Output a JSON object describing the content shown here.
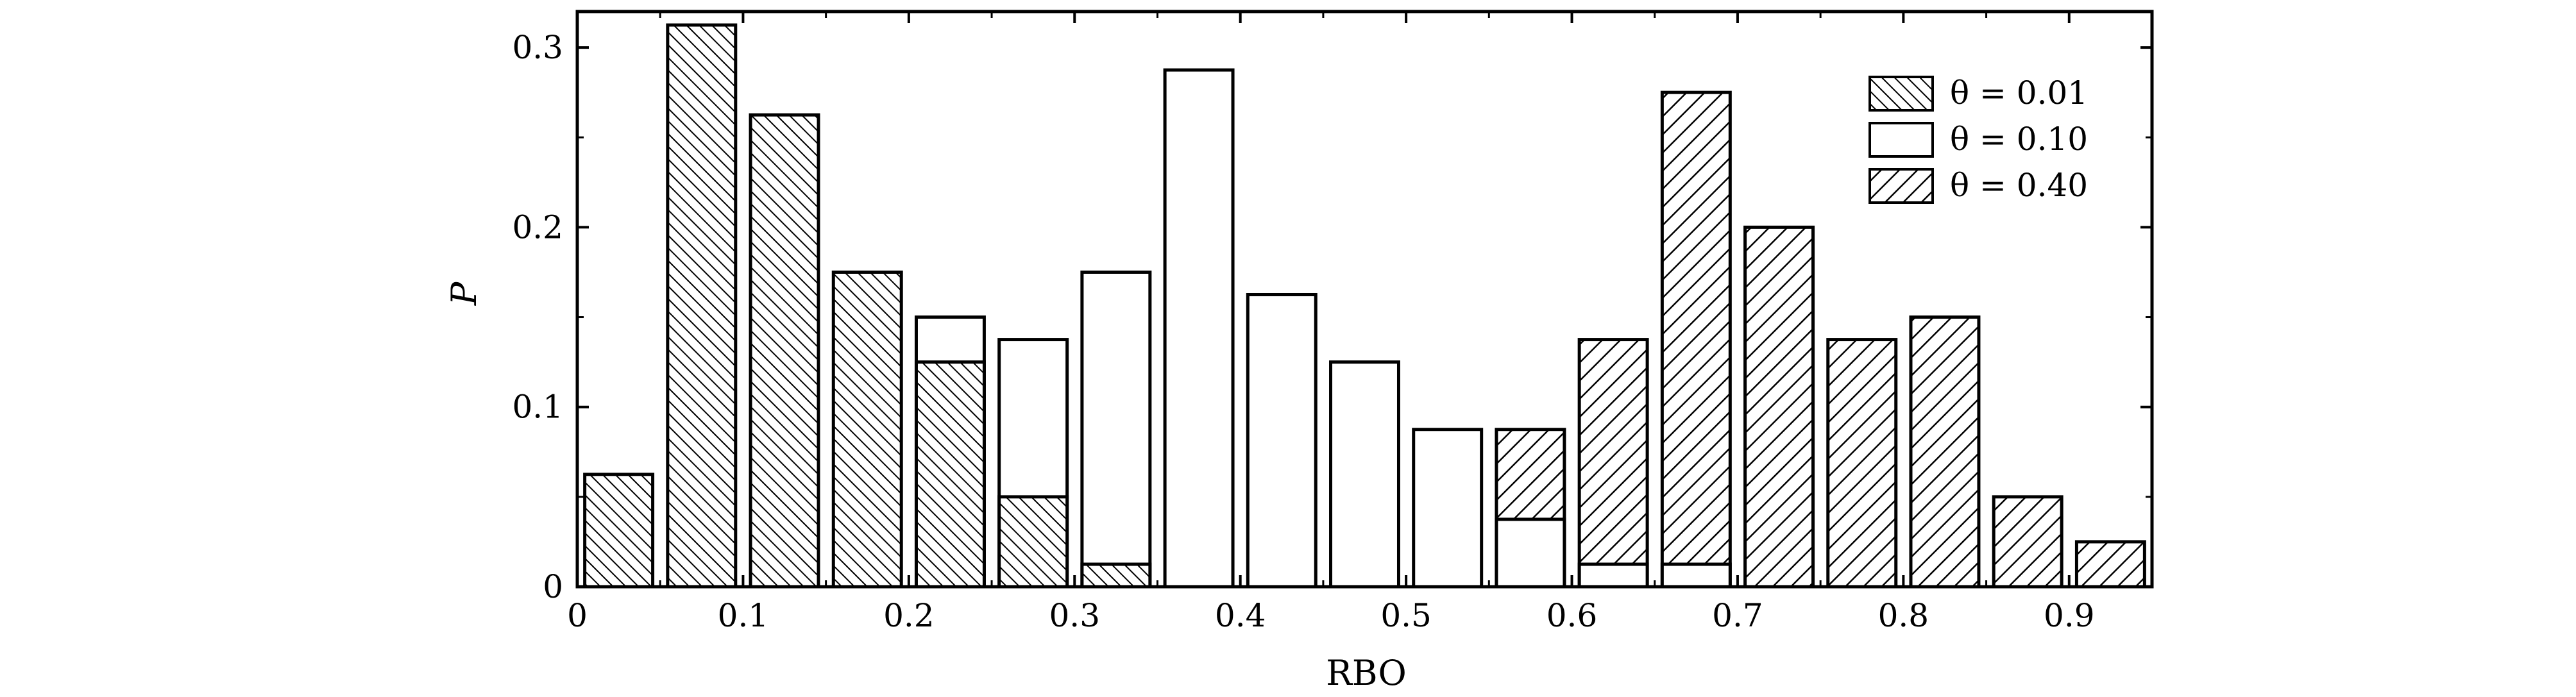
{
  "chart_data": {
    "type": "bar",
    "xlabel": "RBO",
    "ylabel": "P",
    "xlim": [
      0,
      0.95
    ],
    "ylim": [
      0,
      0.32
    ],
    "xticks": [
      "0",
      "0.1",
      "0.2",
      "0.3",
      "0.4",
      "0.5",
      "0.6",
      "0.7",
      "0.8",
      "0.9"
    ],
    "yticks": [
      "0",
      "0.1",
      "0.2",
      "0.3"
    ],
    "bin_width": 0.05,
    "bin_starts": [
      0.0,
      0.05,
      0.1,
      0.15,
      0.2,
      0.25,
      0.3,
      0.35,
      0.4,
      0.45,
      0.5,
      0.55,
      0.6,
      0.65,
      0.7,
      0.75,
      0.8,
      0.85,
      0.9
    ],
    "legend_position": "top-right",
    "series": [
      {
        "name": "θ = 0.01",
        "pattern": "dense-diagonal",
        "values": [
          0.0625,
          0.3125,
          0.2625,
          0.175,
          0.125,
          0.05,
          0.0125,
          0,
          0,
          0,
          0,
          0,
          0,
          0,
          0,
          0,
          0,
          0,
          0
        ]
      },
      {
        "name": "θ = 0.10",
        "pattern": "none",
        "values": [
          0,
          0,
          0,
          0,
          0.15,
          0.1375,
          0.175,
          0.2875,
          0.1625,
          0.125,
          0.0875,
          0.0375,
          0.0125,
          0.0125,
          0,
          0,
          0,
          0,
          0
        ]
      },
      {
        "name": "θ = 0.40",
        "pattern": "sparse-backslash",
        "values": [
          0,
          0,
          0,
          0,
          0,
          0,
          0,
          0,
          0,
          0,
          0,
          0.0875,
          0.1375,
          0.275,
          0.2,
          0.1375,
          0.15,
          0.05,
          0.025
        ]
      }
    ],
    "colors": {
      "axis": "#000000",
      "bar_fill": "#ffffff",
      "hatch": "#000000"
    }
  }
}
